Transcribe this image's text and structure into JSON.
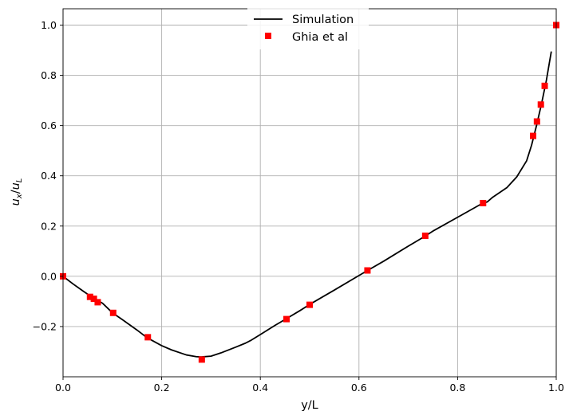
{
  "chart_data": {
    "type": "line",
    "title": "",
    "xlabel": "y/L",
    "ylabel_main": "u",
    "ylabel_main_sub": "x",
    "ylabel_den": "u",
    "ylabel_den_sub": "L",
    "xlim": [
      0.0,
      1.0
    ],
    "ylim": [
      -0.4,
      1.065
    ],
    "grid": true,
    "legend_placement": "top-center",
    "xticks": [
      0.0,
      0.2,
      0.4,
      0.6,
      0.8,
      1.0
    ],
    "xtick_labels": [
      "0.0",
      "0.2",
      "0.4",
      "0.6",
      "0.8",
      "1.0"
    ],
    "yticks": [
      -0.2,
      0.0,
      0.2,
      0.4,
      0.6,
      0.8,
      1.0
    ],
    "ytick_labels": [
      "−0.2",
      "0.0",
      "0.2",
      "0.4",
      "0.6",
      "0.8",
      "1.0"
    ],
    "series": [
      {
        "name": "Simulation",
        "style": "line",
        "color": "#000000",
        "x": [
          0.0,
          0.02,
          0.04,
          0.06,
          0.08,
          0.1,
          0.12,
          0.15,
          0.17,
          0.2,
          0.22,
          0.25,
          0.27,
          0.28,
          0.3,
          0.32,
          0.35,
          0.37,
          0.38,
          0.4,
          0.43,
          0.45,
          0.48,
          0.5,
          0.55,
          0.6,
          0.62,
          0.65,
          0.7,
          0.73,
          0.75,
          0.8,
          0.85,
          0.86,
          0.87,
          0.9,
          0.92,
          0.94,
          0.95,
          0.96,
          0.97,
          0.98,
          0.99
        ],
        "y": [
          0.0,
          -0.03,
          -0.058,
          -0.085,
          -0.107,
          -0.145,
          -0.172,
          -0.214,
          -0.244,
          -0.276,
          -0.293,
          -0.313,
          -0.32,
          -0.321,
          -0.318,
          -0.305,
          -0.282,
          -0.266,
          -0.256,
          -0.232,
          -0.195,
          -0.172,
          -0.137,
          -0.112,
          -0.055,
          0.003,
          0.026,
          0.06,
          0.12,
          0.155,
          0.18,
          0.235,
          0.29,
          0.296,
          0.313,
          0.353,
          0.396,
          0.46,
          0.522,
          0.6,
          0.685,
          0.78,
          0.895
        ]
      },
      {
        "name": "Ghia et al",
        "style": "markers",
        "marker": "square",
        "color": "#ff0000",
        "x": [
          0.0,
          0.0547,
          0.0625,
          0.0703,
          0.1016,
          0.1719,
          0.2813,
          0.4531,
          0.5,
          0.6172,
          0.7344,
          0.8516,
          0.9531,
          0.9609,
          0.9688,
          0.9766,
          1.0
        ],
        "y": [
          0.0,
          -0.0819,
          -0.0896,
          -0.1032,
          -0.1456,
          -0.2426,
          -0.3314,
          -0.1704,
          -0.1134,
          0.0233,
          0.1614,
          0.2914,
          0.5589,
          0.6162,
          0.6836,
          0.7581,
          1.0
        ]
      }
    ]
  }
}
